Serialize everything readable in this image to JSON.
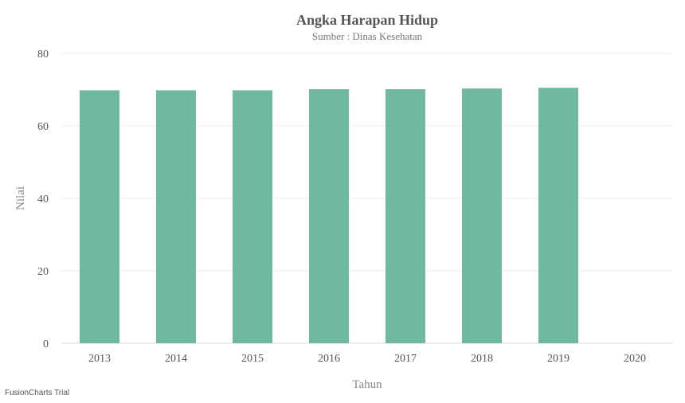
{
  "chart_data": {
    "type": "bar",
    "title": "Angka Harapan Hidup",
    "subtitle": "Sumber : Dinas Kesehatan",
    "xlabel": "Tahun",
    "ylabel": "Nilai",
    "categories": [
      "2013",
      "2014",
      "2015",
      "2016",
      "2017",
      "2018",
      "2019",
      "2020"
    ],
    "values": [
      69.8,
      69.8,
      69.8,
      70.1,
      70.1,
      70.3,
      70.5,
      null
    ],
    "ylim": [
      0,
      80
    ],
    "yticks": [
      "0",
      "20",
      "40",
      "60",
      "80"
    ],
    "grid": true,
    "bar_color": "#6fb9a0"
  },
  "watermark": "FusionCharts Trial"
}
